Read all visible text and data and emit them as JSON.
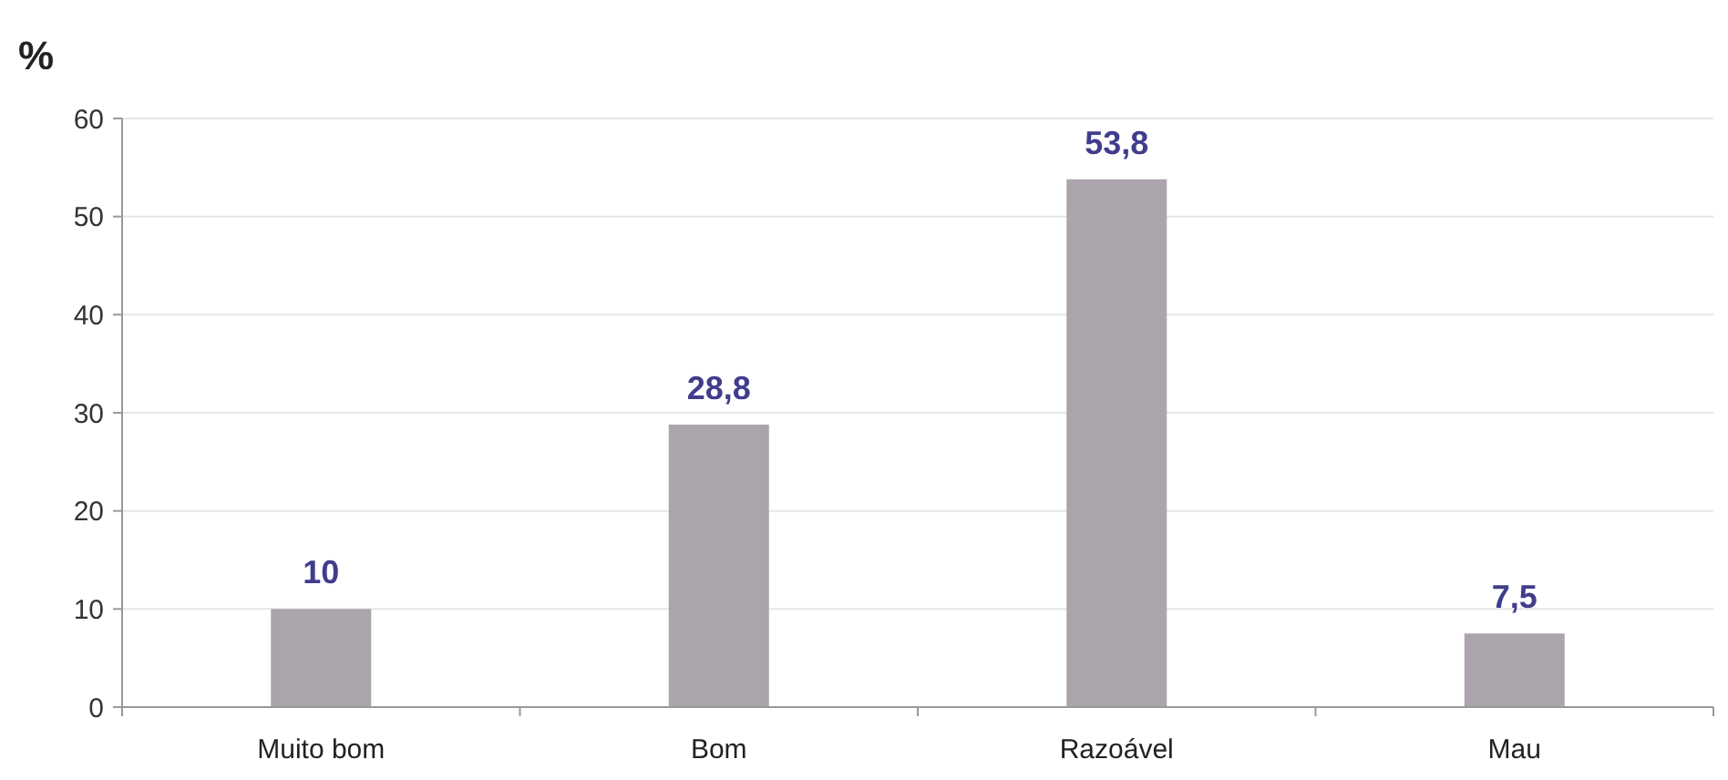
{
  "chart_data": {
    "type": "bar",
    "ylabel": "%",
    "categories": [
      "Muito bom",
      "Bom",
      "Razoável",
      "Mau"
    ],
    "values": [
      10,
      28.8,
      53.8,
      7.5
    ],
    "value_labels": [
      "10",
      "28,8",
      "53,8",
      "7,5"
    ],
    "color": "#aca4ac",
    "ylim": [
      0,
      60
    ],
    "yticks": [
      0,
      10,
      20,
      30,
      40,
      50,
      60
    ],
    "grid": "y"
  }
}
